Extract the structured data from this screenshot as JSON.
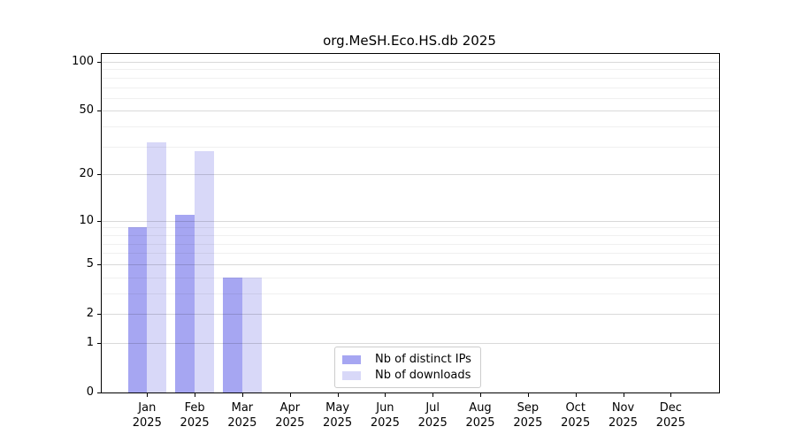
{
  "title": "org.MeSH.Eco.HS.db 2025",
  "chart_data": {
    "type": "bar",
    "title": "org.MeSH.Eco.HS.db 2025",
    "categories": [
      "Jan 2025",
      "Feb 2025",
      "Mar 2025",
      "Apr 2025",
      "May 2025",
      "Jun 2025",
      "Jul 2025",
      "Aug 2025",
      "Sep 2025",
      "Oct 2025",
      "Nov 2025",
      "Dec 2025"
    ],
    "series": [
      {
        "name": "Nb of distinct IPs",
        "color": "#a6a6f2",
        "values": [
          9,
          11,
          4,
          0,
          0,
          0,
          0,
          0,
          0,
          0,
          0,
          0
        ]
      },
      {
        "name": "Nb of downloads",
        "color": "#d8d8f8",
        "values": [
          32,
          28,
          4,
          0,
          0,
          0,
          0,
          0,
          0,
          0,
          0,
          0
        ]
      }
    ],
    "xlabel": "",
    "ylabel": "",
    "yscale": "log1p",
    "ylim": [
      0,
      100
    ],
    "yticks": [
      0,
      1,
      2,
      5,
      10,
      20,
      50,
      100
    ],
    "minor_yticks": [
      3,
      4,
      6,
      7,
      8,
      9,
      30,
      40,
      60,
      70,
      80,
      90
    ],
    "grid": true,
    "legend_position": "lower center"
  }
}
